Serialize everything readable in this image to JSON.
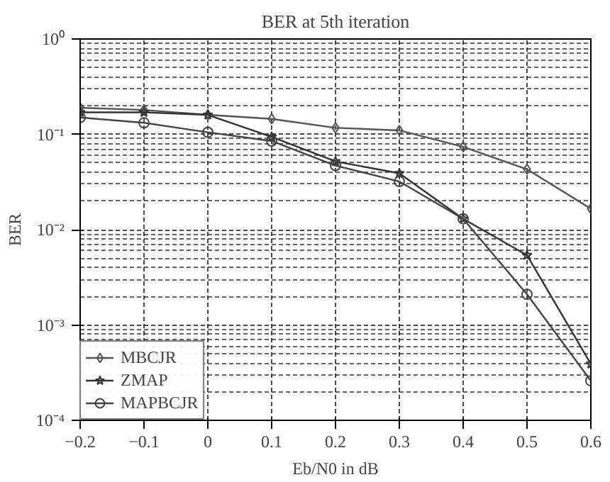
{
  "chart_data": {
    "type": "line",
    "title": "BER at 5th iteration",
    "xlabel": "Eb/N0 in dB",
    "ylabel": "BER",
    "x": [
      -0.2,
      -0.1,
      0,
      0.1,
      0.2,
      0.3,
      0.4,
      0.5,
      0.6
    ],
    "series": [
      {
        "name": "MBCJR",
        "color": "#555555",
        "marker": "diamond",
        "values": [
          0.19,
          0.18,
          0.16,
          0.145,
          0.117,
          0.11,
          0.074,
          0.043,
          0.0166
        ]
      },
      {
        "name": "ZMAP",
        "color": "#333333",
        "marker": "star",
        "values": [
          0.17,
          0.17,
          0.16,
          0.094,
          0.052,
          0.039,
          0.013,
          0.0054,
          0.00039
        ]
      },
      {
        "name": "MAPBCJR",
        "color": "#444444",
        "marker": "circle",
        "values": [
          0.15,
          0.132,
          0.105,
          0.085,
          0.047,
          0.032,
          0.013,
          0.0021,
          0.00026
        ]
      }
    ],
    "xlim": [
      -0.2,
      0.6
    ],
    "xticks": [
      {
        "value": -0.2,
        "label": "−0.2"
      },
      {
        "value": -0.1,
        "label": "−0.1"
      },
      0,
      0.1,
      0.2,
      0.3,
      0.4,
      0.5,
      0.6
    ],
    "ylim": [
      0.0001,
      1
    ],
    "yticks": [
      {
        "value": 0.0001,
        "label": "10⁻⁴"
      },
      {
        "value": 0.001,
        "label": "10⁻³"
      },
      {
        "value": 0.01,
        "label": "10⁻²"
      },
      {
        "value": 0.1,
        "label": "10⁻¹"
      },
      {
        "value": 1,
        "label": "10⁰"
      }
    ],
    "log": "y",
    "grid": true,
    "legend": "bottom left",
    "line_style": "solid"
  }
}
